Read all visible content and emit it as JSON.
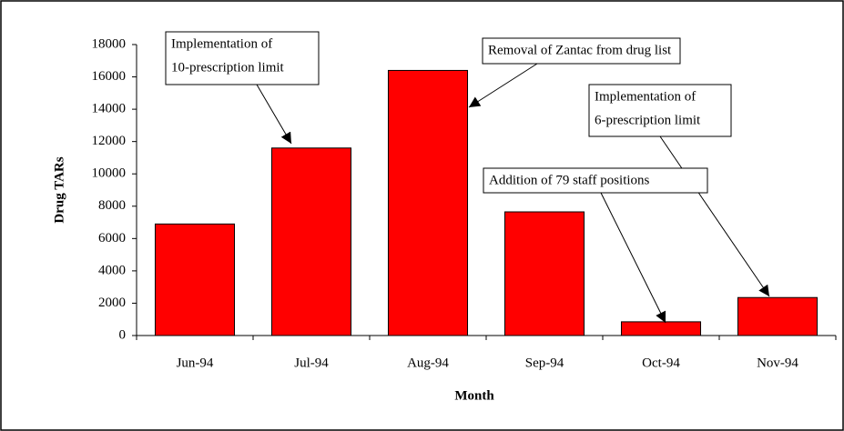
{
  "chart_data": {
    "type": "bar",
    "categories": [
      "Jun-94",
      "Jul-94",
      "Aug-94",
      "Sep-94",
      "Oct-94",
      "Nov-94"
    ],
    "values": [
      6900,
      11600,
      16400,
      7650,
      850,
      2350
    ],
    "color": "#ff0000",
    "ylim": [
      0,
      18000
    ],
    "yticks": [
      0,
      2000,
      4000,
      6000,
      8000,
      10000,
      12000,
      14000,
      16000,
      18000
    ],
    "x_label": "Month",
    "y_label": "Drug TARs",
    "annotations": [
      {
        "lines": [
          "Implementation of",
          "10-prescription limit"
        ]
      },
      {
        "lines": [
          "Removal of Zantac from drug list"
        ]
      },
      {
        "lines": [
          "Implementation of",
          "6-prescription limit"
        ]
      },
      {
        "lines": [
          "Addition of 79 staff positions"
        ]
      }
    ]
  }
}
